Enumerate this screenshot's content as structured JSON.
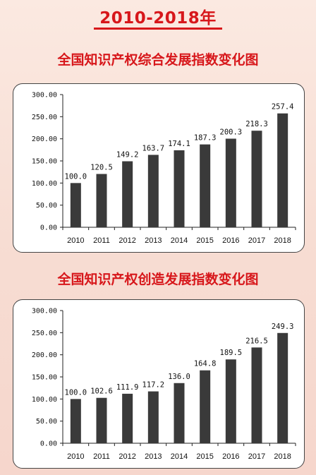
{
  "header": {
    "title": "2010-2018年"
  },
  "chart_data": [
    {
      "type": "bar",
      "title": "全国知识产权综合发展指数变化图",
      "categories": [
        "2010",
        "2011",
        "2012",
        "2013",
        "2014",
        "2015",
        "2016",
        "2017",
        "2018"
      ],
      "values": [
        100.0,
        120.5,
        149.2,
        163.7,
        174.1,
        187.3,
        200.3,
        218.3,
        257.4
      ],
      "value_labels": [
        "100.0",
        "120.5",
        "149.2",
        "163.7",
        "174.1",
        "187.3",
        "200.3",
        "218.3",
        "257.4"
      ],
      "yticks": [
        "0.00",
        "50.00",
        "100.00",
        "150.00",
        "200.00",
        "250.00",
        "300.00"
      ],
      "ylim": [
        0,
        300
      ],
      "bar_color": "#3a3a3a",
      "grid": false
    },
    {
      "type": "bar",
      "title": "全国知识产权创造发展指数变化图",
      "categories": [
        "2010",
        "2011",
        "2012",
        "2013",
        "2014",
        "2015",
        "2016",
        "2017",
        "2018"
      ],
      "values": [
        100.0,
        102.6,
        111.9,
        117.2,
        136.0,
        164.8,
        189.5,
        216.5,
        249.3
      ],
      "value_labels": [
        "100.0",
        "102.6",
        "111.9",
        "117.2",
        "136.0",
        "164.8",
        "189.5",
        "216.5",
        "249.3"
      ],
      "yticks": [
        "0.00",
        "50.00",
        "100.00",
        "150.00",
        "200.00",
        "250.00",
        "300.00"
      ],
      "ylim": [
        0,
        300
      ],
      "bar_color": "#3a3a3a",
      "grid": false
    }
  ],
  "colors": {
    "title_red": "#d7171b",
    "background": "#f8e1d8"
  }
}
